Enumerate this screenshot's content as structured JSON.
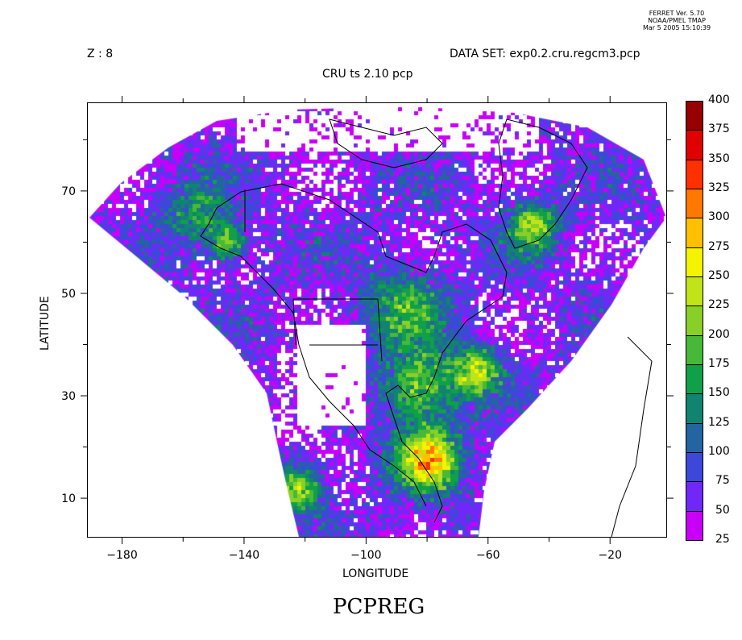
{
  "header": {
    "ferret_version": "FERRET Ver. 5.70",
    "ferret_org": "NOAA/PMEL TMAP",
    "ferret_date": "Mar  5 2005 15:10:39",
    "z_label": "Z : 8",
    "dataset_label": "DATA SET: exp0.2.cru.regcm3.pcp",
    "subtitle": "CRU ts 2.10 pcp",
    "variable_title": "PCPREG"
  },
  "chart_data": {
    "type": "heatmap",
    "title": "CRU ts 2.10 pcp",
    "variable": "PCPREG",
    "xlabel": "LONGITUDE",
    "ylabel": "LATITUDE",
    "xlim": [
      -191.5,
      -1.3
    ],
    "ylim": [
      2.3,
      87.3
    ],
    "x_ticks": [
      -180,
      -140,
      -100,
      -60,
      -20
    ],
    "x_tick_labels": [
      "−180",
      "−140",
      "−100",
      "−60",
      "−20"
    ],
    "y_ticks": [
      10,
      30,
      50,
      70
    ],
    "y_tick_labels": [
      "10",
      "30",
      "50",
      "70"
    ],
    "colorbar": {
      "levels": [
        25,
        50,
        75,
        100,
        125,
        150,
        175,
        200,
        225,
        250,
        275,
        300,
        325,
        350,
        375,
        400
      ],
      "level_labels": [
        "25",
        "50",
        "75",
        "100",
        "125",
        "150",
        "175",
        "200",
        "225",
        "250",
        "275",
        "300",
        "325",
        "350",
        "375",
        "400"
      ],
      "colors": [
        "#c800f8",
        "#7028f8",
        "#3c48d8",
        "#2464a0",
        "#108470",
        "#10a048",
        "#48b838",
        "#88d028",
        "#c0e418",
        "#f4f400",
        "#ffc000",
        "#ff7800",
        "#ff3000",
        "#e00000",
        "#960000"
      ],
      "placement": "right"
    },
    "missing_color": "#ffffff",
    "grid": false,
    "overlay": "coastlines and political boundaries"
  }
}
